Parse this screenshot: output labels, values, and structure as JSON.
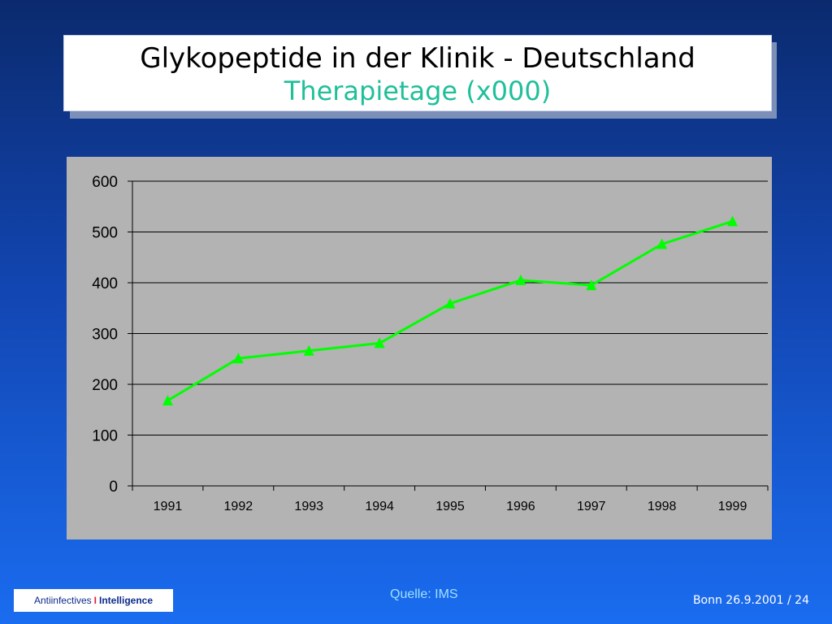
{
  "header": {
    "title": "Glykopeptide in der Klinik - Deutschland",
    "subtitle": "Therapietage (x000)"
  },
  "chart_data": {
    "type": "line",
    "categories": [
      "1991",
      "1992",
      "1993",
      "1994",
      "1995",
      "1996",
      "1997",
      "1998",
      "1999"
    ],
    "series": [
      {
        "values": [
          168,
          251,
          266,
          281,
          359,
          405,
          395,
          476,
          521
        ],
        "color": "#00ff00",
        "marker": "triangle"
      }
    ],
    "ylim": [
      0,
      600
    ],
    "yticks": [
      0,
      100,
      200,
      300,
      400,
      500,
      600
    ],
    "grid": true,
    "background": "#b3b3b3"
  },
  "footer": {
    "source": "Quelle: IMS",
    "brand_left": "Antiinfectives",
    "brand_sep": "I",
    "brand_right": "Intelligence",
    "page_info": "Bonn 26.9.2001 / 24"
  }
}
